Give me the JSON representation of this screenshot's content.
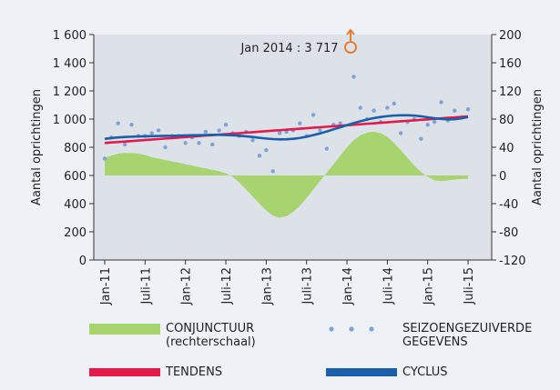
{
  "chart_data": {
    "type": "line",
    "y_label": "Aantal oprichtingen",
    "y2_label": "Aantal oprichtingen",
    "annotation": "Jan 2014 : 3 717",
    "categories": [
      "Jan-11",
      null,
      null,
      null,
      null,
      null,
      "Juli-11",
      null,
      null,
      null,
      null,
      null,
      "Jan-12",
      null,
      null,
      null,
      null,
      null,
      "Juli-12",
      null,
      null,
      null,
      null,
      null,
      "Jan-13",
      null,
      null,
      null,
      null,
      null,
      "Juli-13",
      null,
      null,
      null,
      null,
      null,
      "Jan-14",
      null,
      null,
      null,
      null,
      null,
      "Juli-14",
      null,
      null,
      null,
      null,
      null,
      "Jan-15",
      null,
      null,
      null,
      null,
      null,
      "Juli-15"
    ],
    "ylim": [
      0,
      1600
    ],
    "yticks": [
      0,
      200,
      400,
      600,
      800,
      {
        "value": 1000,
        "label": "1 000"
      },
      {
        "value": 1200,
        "label": "1 200"
      },
      {
        "value": 1400,
        "label": "1 400"
      },
      {
        "value": 1600,
        "label": "1 600"
      }
    ],
    "y2lim": [
      -120,
      200
    ],
    "y2ticks": [
      -120,
      -80,
      -40,
      0,
      40,
      80,
      120,
      160,
      200
    ],
    "series": [
      {
        "name": "CONJUNCTUUR (rechterschaal)",
        "kind": "area",
        "axis": "y2",
        "color": "#a8d46f",
        "values": [
          25,
          28,
          31,
          32,
          32,
          31,
          29,
          26,
          24,
          22,
          20,
          18,
          16,
          14,
          12,
          10,
          8,
          6,
          3,
          -2,
          -10,
          -20,
          -30,
          -40,
          -50,
          -57,
          -60,
          -58,
          -52,
          -43,
          -32,
          -20,
          -8,
          4,
          16,
          28,
          40,
          50,
          57,
          61,
          62,
          60,
          55,
          46,
          36,
          25,
          14,
          5,
          -2,
          -7,
          -8,
          -7,
          -6,
          -5,
          -5
        ]
      },
      {
        "name": "SEIZOENGEZUIVERDE GEGEVENS",
        "kind": "scatter",
        "color": "#7fa3d6",
        "values": [
          720,
          870,
          970,
          820,
          960,
          880,
          880,
          900,
          920,
          800,
          880,
          880,
          830,
          870,
          830,
          910,
          820,
          920,
          960,
          900,
          880,
          910,
          850,
          740,
          780,
          630,
          900,
          910,
          920,
          970,
          880,
          1030,
          920,
          790,
          960,
          970,
          null,
          1300,
          1080,
          1000,
          1060,
          980,
          1080,
          1110,
          900,
          980,
          1000,
          860,
          960,
          980,
          1120,
          990,
          1060,
          1010,
          1070
        ]
      },
      {
        "name": "TENDENS",
        "kind": "line",
        "color": "#e5194a",
        "values": [
          830,
          834,
          837,
          841,
          844,
          848,
          851,
          855,
          858,
          862,
          865,
          869,
          872,
          876,
          879,
          883,
          886,
          890,
          893,
          897,
          900,
          904,
          907,
          911,
          914,
          918,
          921,
          925,
          928,
          932,
          935,
          939,
          942,
          946,
          949,
          953,
          956,
          960,
          963,
          967,
          970,
          974,
          977,
          981,
          984,
          988,
          991,
          995,
          998,
          1002,
          1005,
          1009,
          1012,
          1016,
          1019
        ]
      },
      {
        "name": "CYCLUS",
        "kind": "line",
        "color": "#1a5fab",
        "values": [
          860,
          865,
          870,
          873,
          875,
          877,
          878,
          879,
          880,
          881,
          882,
          883,
          884,
          885,
          886,
          887,
          888,
          888,
          887,
          885,
          882,
          878,
          873,
          867,
          862,
          858,
          856,
          857,
          860,
          866,
          875,
          886,
          898,
          912,
          927,
          942,
          957,
          972,
          985,
          997,
          1007,
          1015,
          1021,
          1025,
          1027,
          1027,
          1025,
          1020,
          1013,
          1006,
          1001,
          998,
          999,
          1005,
          1015
        ]
      }
    ]
  }
}
